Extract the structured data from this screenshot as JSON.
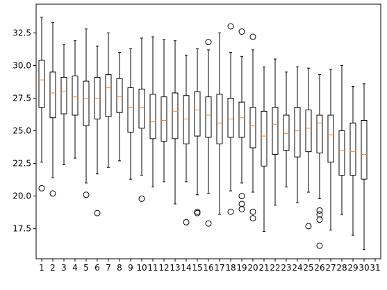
{
  "chart_data": {
    "type": "box",
    "title": "",
    "xlabel": "",
    "ylabel": "",
    "ylim": [
      15.2,
      34.7
    ],
    "yticks": [
      17.5,
      20.0,
      22.5,
      25.0,
      27.5,
      30.0,
      32.5
    ],
    "ytick_labels": [
      "17.5",
      "20.0",
      "22.5",
      "25.0",
      "27.5",
      "30.0",
      "32.5"
    ],
    "categories": [
      "1",
      "2",
      "3",
      "4",
      "5",
      "6",
      "7",
      "8",
      "9",
      "10",
      "11",
      "12",
      "13",
      "14",
      "15",
      "16",
      "17",
      "18",
      "19",
      "20",
      "21",
      "22",
      "23",
      "24",
      "25",
      "26",
      "27",
      "28",
      "29",
      "30",
      "31"
    ],
    "grid": false,
    "colors": {
      "box": "#000000",
      "median": "#ff7f0e",
      "outlier_edge": "#000000"
    },
    "boxes": [
      {
        "whisker_low": 22.6,
        "q1": 26.8,
        "median": 28.9,
        "q3": 30.4,
        "whisker_high": 33.7,
        "fliers": [
          20.6
        ]
      },
      {
        "whisker_low": 21.4,
        "q1": 26.0,
        "median": 27.9,
        "q3": 29.5,
        "whisker_high": 33.3,
        "fliers": [
          20.2
        ]
      },
      {
        "whisker_low": 22.4,
        "q1": 26.3,
        "median": 28.0,
        "q3": 29.1,
        "whisker_high": 31.6,
        "fliers": []
      },
      {
        "whisker_low": 22.9,
        "q1": 26.2,
        "median": 27.6,
        "q3": 29.2,
        "whisker_high": 31.9,
        "fliers": []
      },
      {
        "whisker_low": 21.0,
        "q1": 25.4,
        "median": 27.5,
        "q3": 28.8,
        "whisker_high": 32.8,
        "fliers": [
          20.1
        ]
      },
      {
        "whisker_low": 21.7,
        "q1": 25.9,
        "median": 27.5,
        "q3": 29.1,
        "whisker_high": 31.5,
        "fliers": [
          18.7
        ]
      },
      {
        "whisker_low": 22.2,
        "q1": 26.1,
        "median": 28.3,
        "q3": 29.3,
        "whisker_high": 32.5,
        "fliers": []
      },
      {
        "whisker_low": 22.7,
        "q1": 26.4,
        "median": 27.6,
        "q3": 29.0,
        "whisker_high": 31.0,
        "fliers": []
      },
      {
        "whisker_low": 21.3,
        "q1": 24.9,
        "median": 26.8,
        "q3": 28.3,
        "whisker_high": 31.3,
        "fliers": []
      },
      {
        "whisker_low": 21.6,
        "q1": 25.2,
        "median": 26.8,
        "q3": 28.2,
        "whisker_high": 32.1,
        "fliers": [
          19.8
        ]
      },
      {
        "whisker_low": 20.7,
        "q1": 24.4,
        "median": 25.7,
        "q3": 27.8,
        "whisker_high": 32.2,
        "fliers": []
      },
      {
        "whisker_low": 21.1,
        "q1": 24.2,
        "median": 25.8,
        "q3": 27.6,
        "whisker_high": 32.0,
        "fliers": []
      },
      {
        "whisker_low": 19.4,
        "q1": 24.4,
        "median": 26.5,
        "q3": 27.9,
        "whisker_high": 31.9,
        "fliers": []
      },
      {
        "whisker_low": 21.1,
        "q1": 24.0,
        "median": 25.9,
        "q3": 27.7,
        "whisker_high": 30.8,
        "fliers": [
          18.0
        ]
      },
      {
        "whisker_low": 20.1,
        "q1": 24.6,
        "median": 26.6,
        "q3": 28.0,
        "whisker_high": 31.3,
        "fliers": [
          18.8,
          18.7
        ]
      },
      {
        "whisker_low": 20.2,
        "q1": 24.5,
        "median": 26.2,
        "q3": 27.6,
        "whisker_high": 31.2,
        "fliers": [
          31.8,
          17.9
        ]
      },
      {
        "whisker_low": 18.6,
        "q1": 24.0,
        "median": 25.6,
        "q3": 27.8,
        "whisker_high": 32.5,
        "fliers": []
      },
      {
        "whisker_low": 20.4,
        "q1": 24.5,
        "median": 25.9,
        "q3": 27.5,
        "whisker_high": 31.0,
        "fliers": [
          33.0,
          18.8
        ]
      },
      {
        "whisker_low": 21.0,
        "q1": 24.5,
        "median": 26.0,
        "q3": 27.2,
        "whisker_high": 30.7,
        "fliers": [
          32.6,
          20.0,
          19.4,
          19.0
        ]
      },
      {
        "whisker_low": 20.3,
        "q1": 23.7,
        "median": 25.4,
        "q3": 26.8,
        "whisker_high": 31.2,
        "fliers": [
          32.2,
          18.8,
          18.3
        ]
      },
      {
        "whisker_low": 17.3,
        "q1": 22.3,
        "median": 24.6,
        "q3": 26.5,
        "whisker_high": 29.9,
        "fliers": []
      },
      {
        "whisker_low": 19.3,
        "q1": 23.2,
        "median": 25.5,
        "q3": 26.8,
        "whisker_high": 30.5,
        "fliers": []
      },
      {
        "whisker_low": 20.7,
        "q1": 23.5,
        "median": 24.8,
        "q3": 26.2,
        "whisker_high": 29.5,
        "fliers": []
      },
      {
        "whisker_low": 19.5,
        "q1": 23.0,
        "median": 25.0,
        "q3": 26.8,
        "whisker_high": 29.9,
        "fliers": []
      },
      {
        "whisker_low": 20.3,
        "q1": 23.4,
        "median": 25.2,
        "q3": 26.6,
        "whisker_high": 29.8,
        "fliers": [
          17.7
        ]
      },
      {
        "whisker_low": 19.8,
        "q1": 23.3,
        "median": 25.6,
        "q3": 26.2,
        "whisker_high": 29.3,
        "fliers": [
          18.9,
          18.6,
          18.2,
          16.2
        ]
      },
      {
        "whisker_low": 17.4,
        "q1": 22.6,
        "median": 24.7,
        "q3": 26.2,
        "whisker_high": 29.7,
        "fliers": []
      },
      {
        "whisker_low": 18.6,
        "q1": 21.6,
        "median": 23.5,
        "q3": 25.0,
        "whisker_high": 30.0,
        "fliers": []
      },
      {
        "whisker_low": 17.0,
        "q1": 21.6,
        "median": 23.4,
        "q3": 25.6,
        "whisker_high": 28.4,
        "fliers": []
      },
      {
        "whisker_low": 15.9,
        "q1": 21.3,
        "median": 23.2,
        "q3": 25.8,
        "whisker_high": 28.6,
        "fliers": []
      },
      null
    ]
  }
}
